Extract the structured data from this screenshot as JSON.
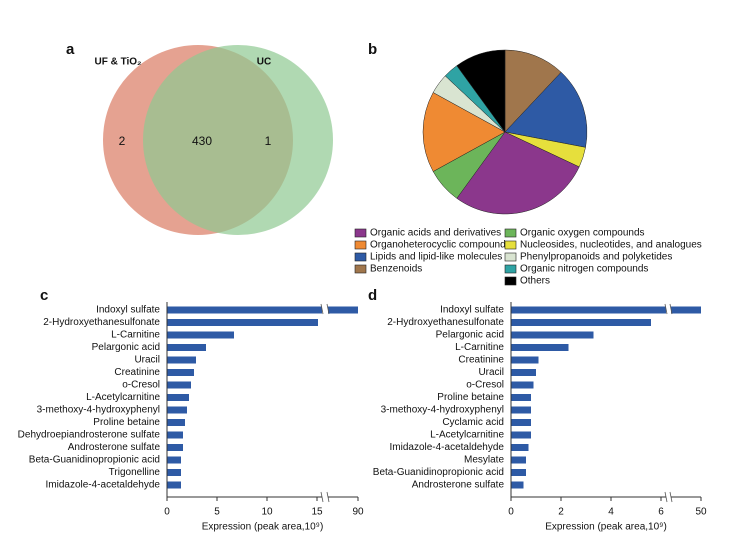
{
  "chart_data": [
    {
      "type": "venn",
      "label": "a",
      "sets": [
        {
          "name": "UF & TiO₂",
          "color": "#de8872"
        },
        {
          "name": "UC",
          "color": "#8fc992"
        }
      ],
      "values": [
        2,
        430,
        1
      ]
    },
    {
      "type": "pie",
      "label": "b",
      "categories": [
        "Benzenoids",
        "Lipids and lipid-like molecules",
        "Nucleosides, nucleotides, and analogues",
        "Organic acids and derivatives",
        "Organic oxygen compounds",
        "Organoheterocyclic compounds",
        "Phenylpropanoids and polyketides",
        "Organic nitrogen compounds",
        "Others"
      ],
      "values": [
        12,
        16,
        4,
        28,
        7,
        16,
        4,
        3,
        10
      ],
      "colors": [
        "#a0764c",
        "#2e5aa5",
        "#e6df3c",
        "#8b378c",
        "#6cb55a",
        "#ef8a33",
        "#d9e4d1",
        "#2fa3a4",
        "#000000"
      ]
    },
    {
      "type": "bar",
      "label": "c",
      "color": "#2e5aa5",
      "categories": [
        "Indoxyl sulfate",
        "2-Hydroxyethanesulfonate",
        "L-Carnitine",
        "Pelargonic acid",
        "Uracil",
        "Creatinine",
        "o-Cresol",
        "L-Acetylcarnitine",
        "3-methoxy-4-hydroxyphenyl",
        "Proline betaine",
        "Dehydroepiandrosterone sulfate",
        "Androsterone sulfate",
        "Beta-Guanidinopropionic acid",
        "Trigonelline",
        "Imidazole-4-acetaldehyde"
      ],
      "values": [
        90,
        15.1,
        6.7,
        3.9,
        2.9,
        2.7,
        2.4,
        2.2,
        2.0,
        1.8,
        1.6,
        1.6,
        1.4,
        1.4,
        1.4
      ],
      "xlim": [
        0,
        90
      ],
      "xbreak": [
        15.5,
        87
      ],
      "xticks": [
        0,
        5,
        10,
        15,
        90
      ],
      "xlabel": "Expression (peak area,10⁹)"
    },
    {
      "type": "bar",
      "label": "d",
      "color": "#2e5aa5",
      "categories": [
        "Indoxyl sulfate",
        "2-Hydroxyethanesulfonate",
        "Pelargonic acid",
        "L-Carnitine",
        "Creatinine",
        "Uracil",
        "o-Cresol",
        "Proline betaine",
        "3-methoxy-4-hydroxyphenyl",
        "Cyclamic acid",
        "L-Acetylcarnitine",
        "Imidazole-4-acetaldehyde",
        "Mesylate",
        "Beta-Guanidinopropionic acid",
        "Androsterone sulfate"
      ],
      "values": [
        50,
        5.6,
        3.3,
        2.3,
        1.1,
        1.0,
        0.9,
        0.8,
        0.8,
        0.8,
        0.8,
        0.7,
        0.6,
        0.6,
        0.5
      ],
      "xlim": [
        0,
        50
      ],
      "xbreak": [
        6.2,
        48.8
      ],
      "xticks": [
        0,
        2,
        4,
        6,
        50
      ],
      "xlabel": "Expression (peak area,10⁹)"
    }
  ]
}
